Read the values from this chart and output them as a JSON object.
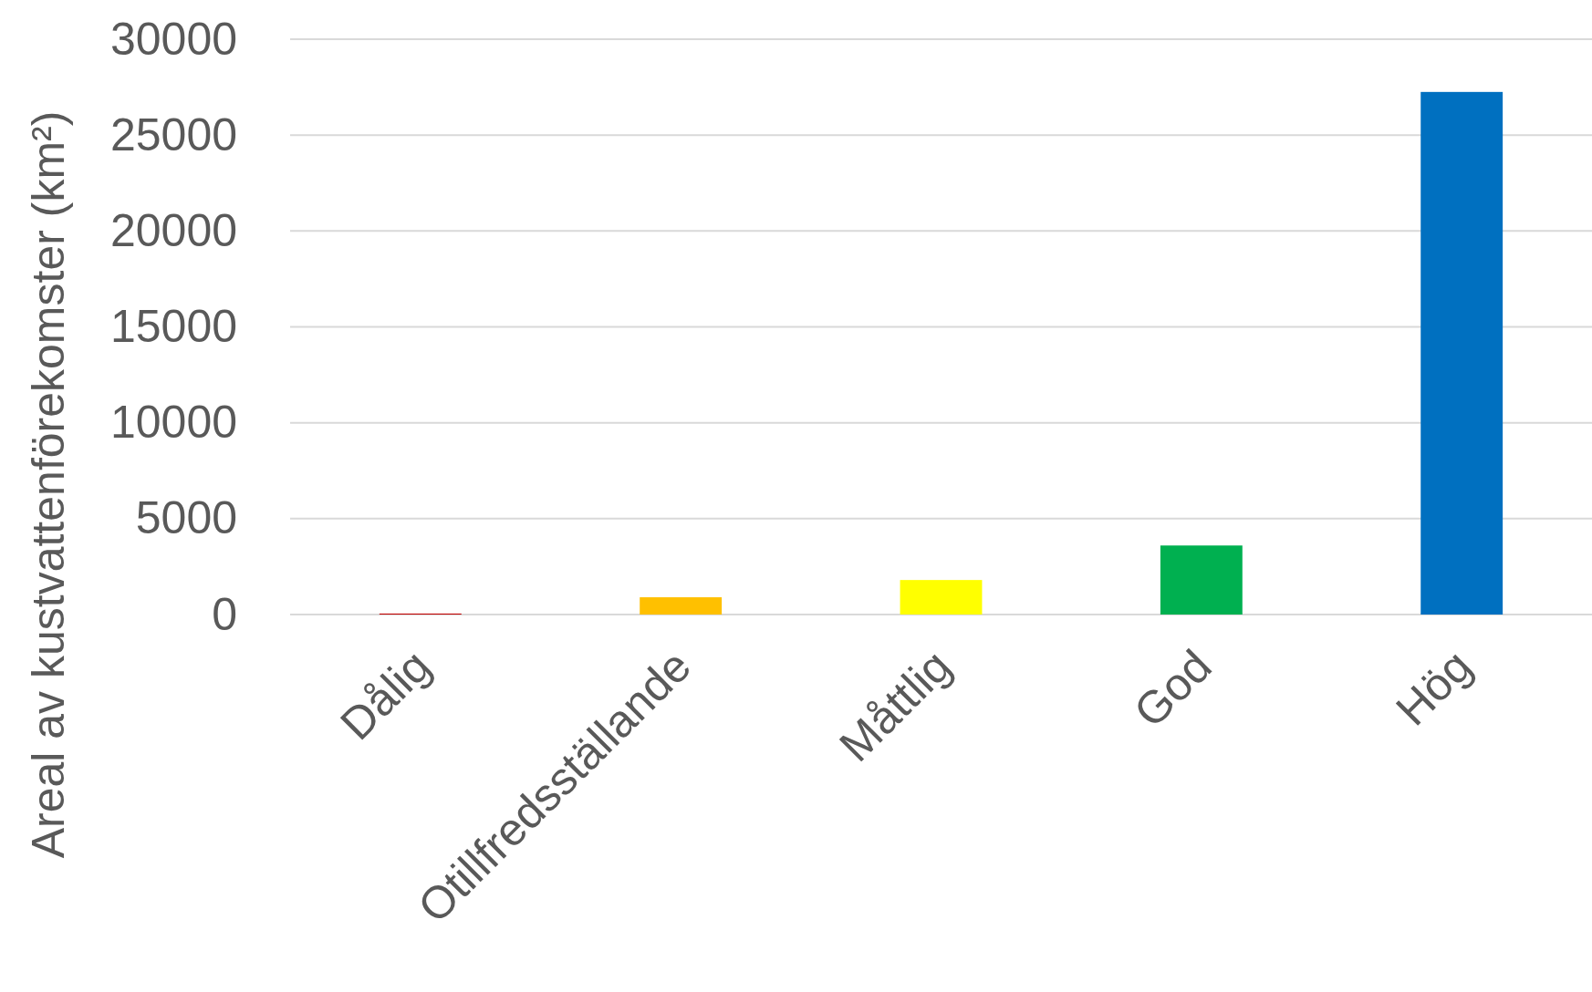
{
  "chart_data": {
    "type": "bar",
    "ylabel": "Areal av kustvattenförekomster (km²)",
    "categories": [
      "Dålig",
      "Otillfredsställande",
      "Måttlig",
      "God",
      "Hög"
    ],
    "values": [
      50,
      900,
      1800,
      3600,
      27250
    ],
    "colors": [
      "#c00000",
      "#ffc000",
      "#ffff00",
      "#00b050",
      "#0070c0"
    ],
    "ylim": [
      0,
      30000
    ],
    "yticks": [
      0,
      5000,
      10000,
      15000,
      20000,
      25000,
      30000
    ],
    "grid": "y"
  }
}
